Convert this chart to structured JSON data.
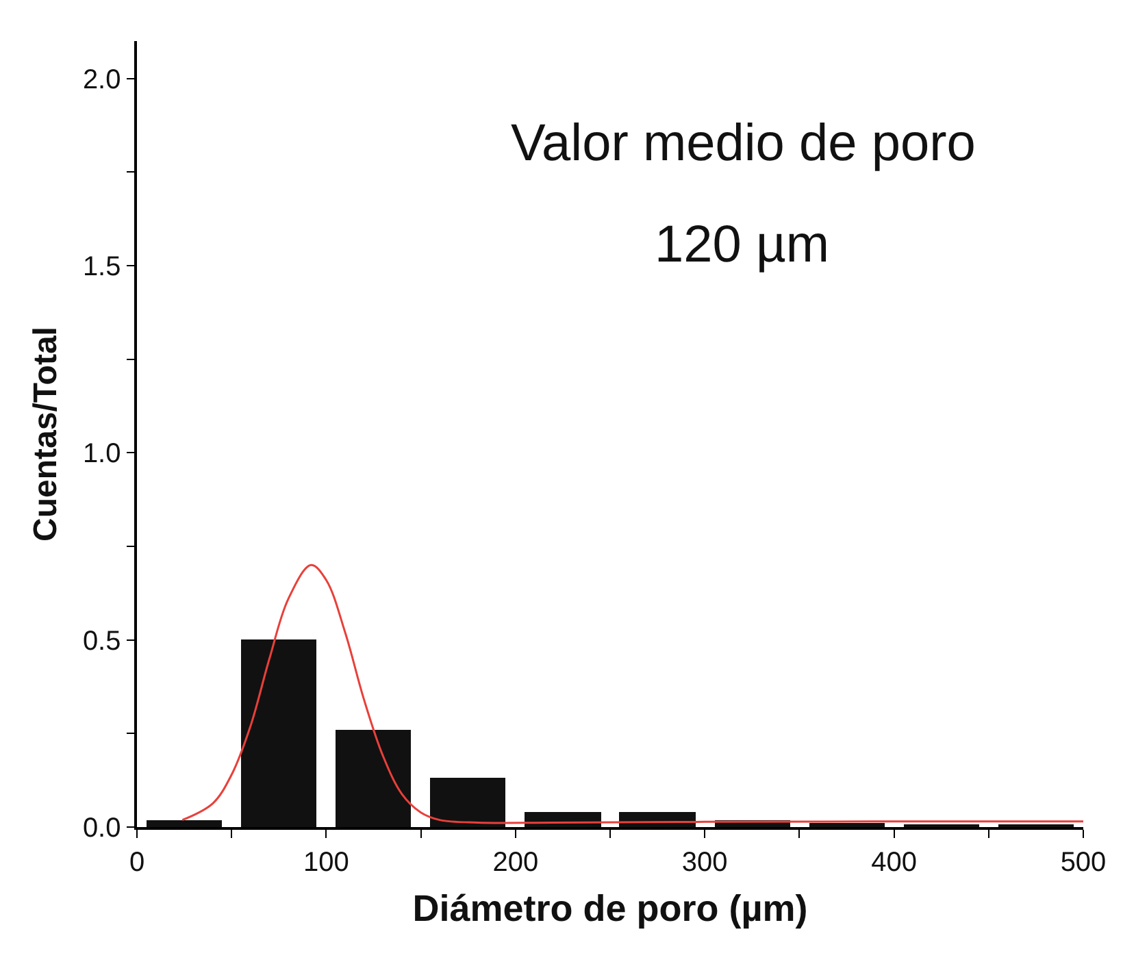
{
  "chart_data": {
    "type": "histogram",
    "xlabel": "Diámetro de poro (µm)",
    "ylabel": "Cuentas/Total",
    "bins": [
      0,
      50,
      100,
      150,
      200,
      250,
      300,
      350,
      400,
      450,
      500
    ],
    "values": [
      0.02,
      0.5,
      0.26,
      0.13,
      0.04,
      0.04,
      0.02,
      0.01,
      0.005,
      0.005
    ],
    "color": "#111111",
    "series": [
      {
        "type": "line",
        "color": "#e8403a",
        "x": [
          24,
          40,
          50,
          60,
          70,
          80,
          92,
          100,
          110,
          120,
          130,
          140,
          150,
          160,
          180,
          220,
          300,
          400,
          500
        ],
        "values": [
          0.019,
          0.063,
          0.14,
          0.27,
          0.45,
          0.61,
          0.7,
          0.66,
          0.52,
          0.34,
          0.19,
          0.088,
          0.039,
          0.019,
          0.012,
          0.012,
          0.014,
          0.015,
          0.015
        ]
      }
    ],
    "xlim": [
      0,
      500
    ],
    "xticks": [
      0,
      {
        "value": 50,
        "label": null
      },
      100,
      {
        "value": 150,
        "label": null
      },
      200,
      {
        "value": 250,
        "label": null
      },
      300,
      {
        "value": 350,
        "label": null
      },
      400,
      {
        "value": 450,
        "label": null
      },
      500
    ],
    "ylim": [
      0,
      2.1
    ],
    "yticks": [
      {
        "value": 0,
        "label": "0.0"
      },
      {
        "value": 0.25,
        "label": null
      },
      {
        "value": 0.5,
        "label": "0.5"
      },
      {
        "value": 0.75,
        "label": null
      },
      {
        "value": 1,
        "label": "1.0"
      },
      {
        "value": 1.25,
        "label": null
      },
      {
        "value": 1.5,
        "label": "1.5"
      },
      {
        "value": 1.75,
        "label": null
      },
      {
        "value": 2,
        "label": "2.0"
      }
    ],
    "annotations": [
      "Valor medio de poro",
      "120 µm"
    ],
    "grid": false
  }
}
